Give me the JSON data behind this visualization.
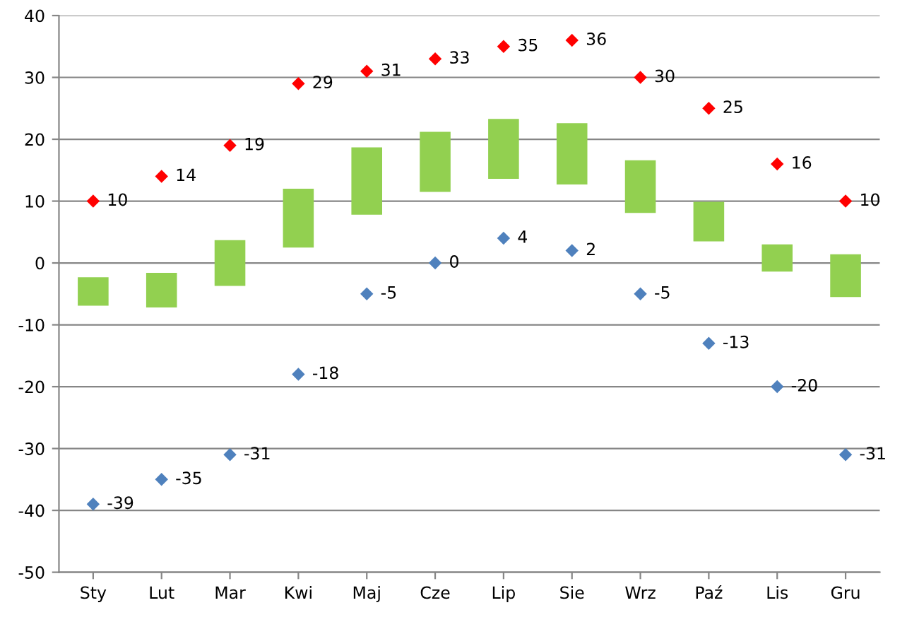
{
  "chart_data": {
    "type": "bar",
    "categories": [
      "Sty",
      "Lut",
      "Mar",
      "Kwi",
      "Maj",
      "Cze",
      "Lip",
      "Sie",
      "Wrz",
      "Paź",
      "Lis",
      "Gru"
    ],
    "ylim": [
      -50,
      40
    ],
    "yticks": [
      -50,
      -40,
      -30,
      -20,
      -10,
      0,
      10,
      20,
      30,
      40
    ],
    "grid": "y",
    "legend": false,
    "marker": "diamond",
    "series": [
      {
        "color": "#92d050",
        "base": [
          -6.9,
          -7.2,
          -3.7,
          2.5,
          7.8,
          11.5,
          13.6,
          12.7,
          8.1,
          3.5,
          -1.4,
          -5.5
        ],
        "values": [
          4.6,
          5.6,
          7.4,
          9.5,
          10.9,
          9.7,
          9.7,
          9.9,
          8.5,
          6.4,
          4.4,
          6.9
        ]
      },
      {
        "type": "scatter",
        "color": "#ff0000",
        "values": [
          10,
          14,
          19,
          29,
          31,
          33,
          35,
          36,
          30,
          25,
          16,
          10
        ],
        "value_labels": [
          "10",
          "14",
          "19",
          "29",
          "31",
          "33",
          "35",
          "36",
          "30",
          "25",
          "16",
          "10"
        ]
      },
      {
        "type": "scatter",
        "color": "#4f81bd",
        "values": [
          -39,
          -35,
          -31,
          -18,
          -5,
          0,
          4,
          2,
          -5,
          -13,
          -20,
          -31
        ],
        "value_labels": [
          "-39",
          "-35",
          "-31",
          "-18",
          "-5",
          "0",
          "4",
          "2",
          "-5",
          "-13",
          "-20",
          "-31"
        ]
      }
    ]
  }
}
